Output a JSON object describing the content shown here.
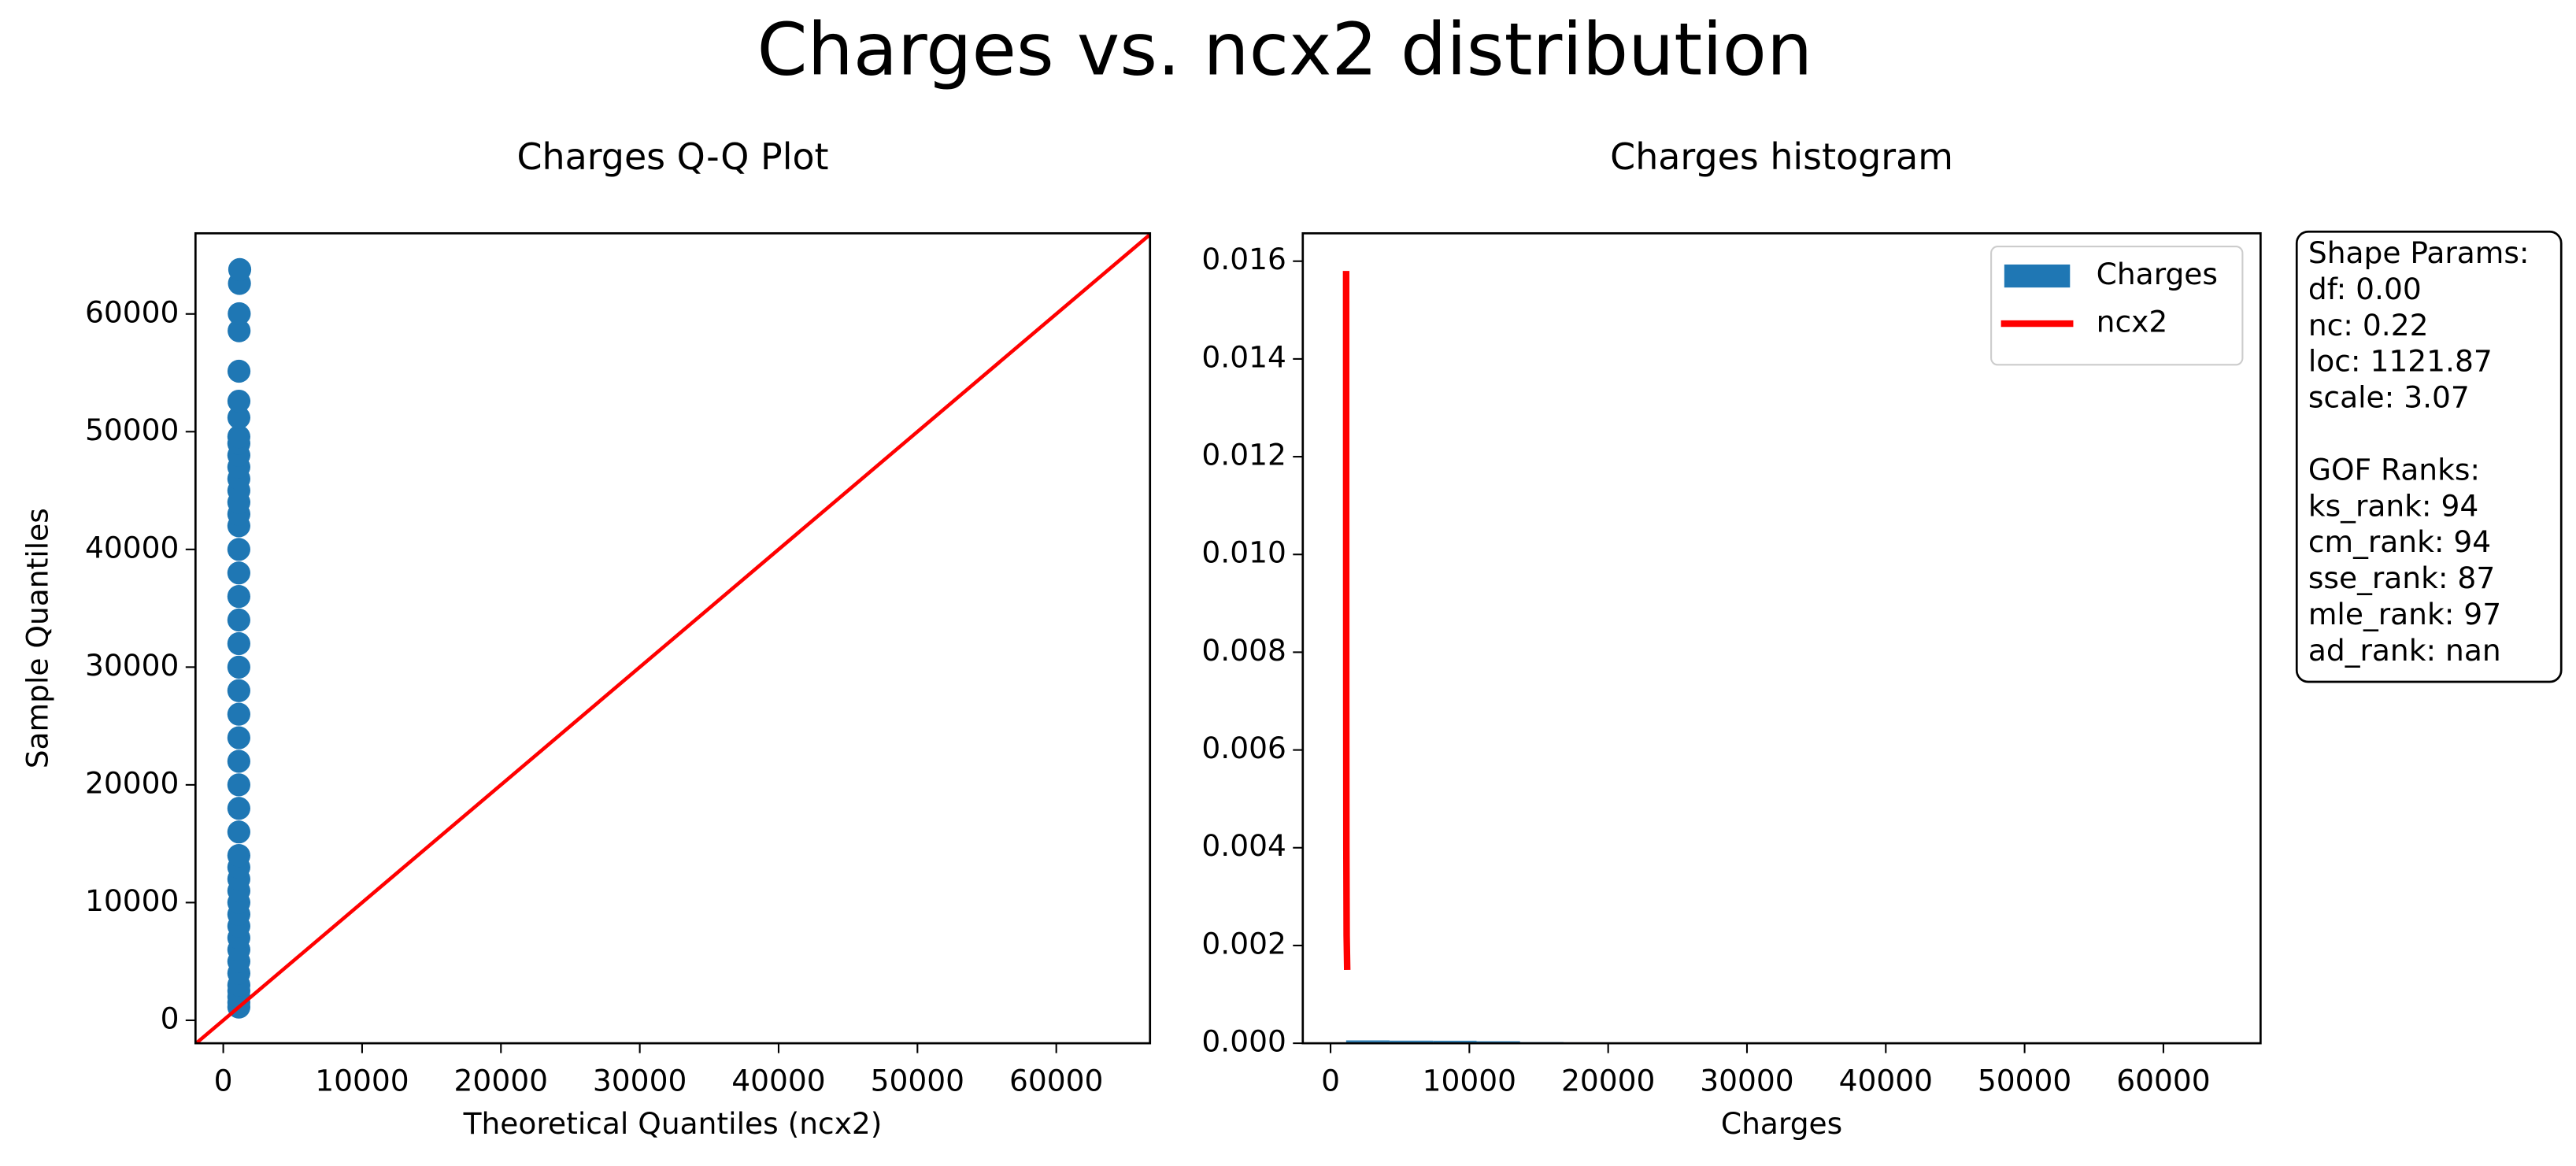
{
  "figure_title": "Charges vs. ncx2 distribution",
  "chart_data": [
    {
      "type": "scatter",
      "title": "Charges Q-Q Plot",
      "xlabel": "Theoretical Quantiles (ncx2)",
      "ylabel": "Sample Quantiles",
      "xlim": [
        -2000,
        66750
      ],
      "ylim": [
        -1950,
        66850
      ],
      "xticks": [
        0,
        10000,
        20000,
        30000,
        40000,
        50000,
        60000
      ],
      "yticks": [
        0,
        10000,
        20000,
        30000,
        40000,
        50000,
        60000
      ],
      "grid": false,
      "series": [
        {
          "color": "#1f77b4",
          "x": [
            1122,
            1122,
            1122,
            1122,
            1122,
            1122,
            1122,
            1122,
            1122,
            1122,
            1122,
            1122,
            1122,
            1122,
            1122,
            1122,
            1122,
            1122,
            1122,
            1122,
            1122,
            1122,
            1122,
            1122,
            1122,
            1122,
            1122,
            1122,
            1122,
            1122,
            1122,
            1122,
            1122,
            1122,
            1122,
            1122,
            1122,
            1123,
            1125,
            1128,
            1132,
            1140,
            1150,
            1165,
            1185
          ],
          "values": [
            1121.87,
            1500,
            2000,
            2500,
            3000,
            4000,
            5000,
            6000,
            7000,
            8000,
            9000,
            10000,
            11000,
            12000,
            13000,
            14000,
            16000,
            18000,
            20000,
            22000,
            24000,
            26000,
            28000,
            30000,
            32000,
            34000,
            36000,
            38000,
            40000,
            42000,
            43000,
            44000,
            45000,
            46000,
            47000,
            48000,
            49000,
            49577,
            51195,
            52591,
            55135,
            58571,
            60021,
            62593,
            63770
          ]
        }
      ],
      "reference_line": {
        "color": "#ff0000",
        "x": [
          -2000,
          66750
        ],
        "values": [
          -2000,
          66750
        ]
      }
    },
    {
      "type": "histogram",
      "title": "Charges histogram",
      "xlabel": "Charges",
      "xlim": [
        -2000,
        67000
      ],
      "ylim": [
        0,
        0.01657
      ],
      "xticks": [
        0,
        10000,
        20000,
        30000,
        40000,
        50000,
        60000
      ],
      "yticks": [
        {
          "value": 0,
          "label": "0.000"
        },
        {
          "value": 0.002,
          "label": "0.002"
        },
        {
          "value": 0.004,
          "label": "0.004"
        },
        {
          "value": 0.006,
          "label": "0.006"
        },
        {
          "value": 0.008,
          "label": "0.008"
        },
        {
          "value": 0.01,
          "label": "0.010"
        },
        {
          "value": 0.012,
          "label": "0.012"
        },
        {
          "value": 0.014,
          "label": "0.014"
        },
        {
          "value": 0.016,
          "label": "0.016"
        }
      ],
      "grid": false,
      "legend": "upper right",
      "name": "Charges",
      "color": "#1f77b4",
      "bins": [
        1122,
        4254,
        7387,
        10519,
        13652,
        16784,
        19916,
        23049,
        26181,
        29314,
        32446,
        35578,
        38711,
        41843,
        44976,
        48108,
        51240,
        54373,
        57505,
        60638,
        63770
      ],
      "values": [
        5.9e-05,
        5.4e-05,
        5.2e-05,
        4.2e-05,
        2.4e-05,
        1.8e-05,
        1.5e-05,
        1e-05,
        6e-06,
        5e-06,
        5e-06,
        6e-06,
        8e-06,
        6e-06,
        6e-06,
        4e-06,
        1e-06,
        5e-07,
        5e-07,
        5e-07
      ],
      "series": [
        {
          "name": "ncx2",
          "color": "#ff0000",
          "x": [
            1123,
            1125,
            1130,
            1140,
            1160,
            1200
          ],
          "values": [
            0.0158,
            0.011,
            0.007,
            0.004,
            0.0022,
            0.0015
          ]
        }
      ],
      "annotations": [
        [
          "Shape Params:",
          "df: 0.00",
          "nc: 0.22",
          "loc: 1121.87",
          "scale: 3.07"
        ],
        [
          "GOF Ranks:",
          "ks_rank: 94",
          "cm_rank: 94",
          "sse_rank: 87",
          "mle_rank: 97",
          "ad_rank: nan"
        ]
      ]
    }
  ]
}
